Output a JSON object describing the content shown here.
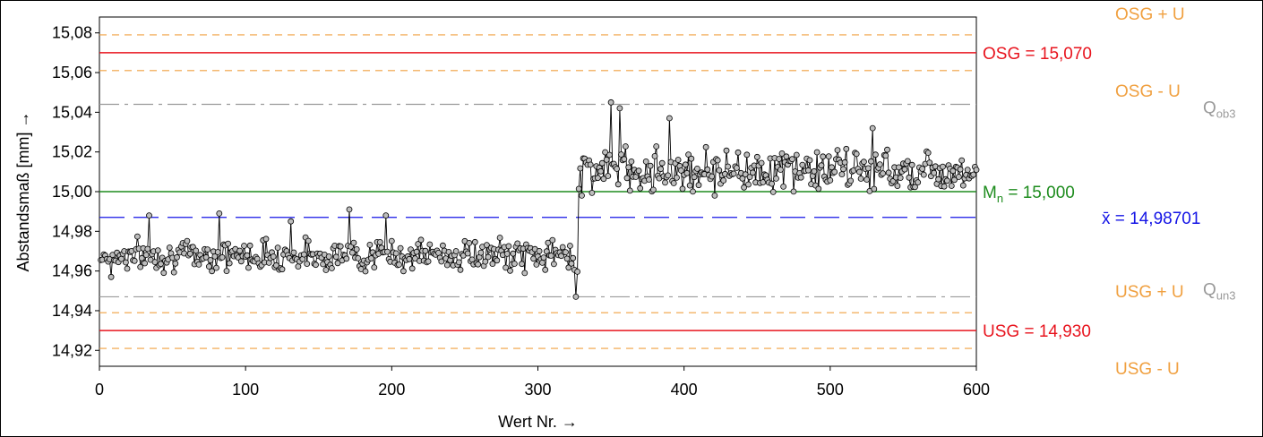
{
  "chart_data": {
    "type": "line",
    "xlabel": "Wert Nr. →",
    "ylabel": "Abstandsmaß [mm] →",
    "xlim": [
      0,
      600
    ],
    "ylim": [
      14.912,
      15.088
    ],
    "x_ticks": [
      0,
      100,
      200,
      300,
      400,
      500,
      600
    ],
    "y_ticks": [
      14.92,
      14.94,
      14.96,
      14.98,
      15.0,
      15.02,
      15.04,
      15.06,
      15.08
    ],
    "y_tick_labels": [
      "14,92",
      "14,94",
      "14,96",
      "14,98",
      "15,00",
      "15,02",
      "15,04",
      "15,06",
      "15,08"
    ],
    "reference_lines": [
      {
        "id": "osg_plus_u",
        "value": 15.079,
        "label": "OSG + U",
        "color": "#f0a040",
        "style": "dashed"
      },
      {
        "id": "osg",
        "value": 15.07,
        "label": "OSG = 15,070",
        "color": "#e8141e",
        "style": "solid"
      },
      {
        "id": "osg_minus_u",
        "value": 15.061,
        "label": "OSG - U",
        "color": "#f0a040",
        "style": "dashed"
      },
      {
        "id": "qob3",
        "value": 15.044,
        "label": "Q",
        "label_sub": "ob3",
        "color": "#9a9a9a",
        "style": "dashdot"
      },
      {
        "id": "mn",
        "value": 15.0,
        "label": "M",
        "label_sub": "n",
        "label_tail": " = 15,000",
        "color": "#1e8c1e",
        "style": "solid"
      },
      {
        "id": "xbar",
        "value": 14.98701,
        "label": "x̄",
        "label_tail": " = 14,98701",
        "color": "#1414e6",
        "style": "longdash"
      },
      {
        "id": "qun3",
        "value": 14.947,
        "label": "Q",
        "label_sub": "un3",
        "color": "#9a9a9a",
        "style": "dashdot"
      },
      {
        "id": "usg_plus_u",
        "value": 14.939,
        "label": "USG + U",
        "color": "#f0a040",
        "style": "dashed"
      },
      {
        "id": "usg",
        "value": 14.93,
        "label": "USG = 14,930",
        "color": "#e8141e",
        "style": "solid"
      },
      {
        "id": "usg_minus_u",
        "value": 14.921,
        "label": "USG - U",
        "color": "#f0a040",
        "style": "dashed"
      }
    ],
    "series": [
      {
        "segments": [
          {
            "x_start": 1,
            "x_end": 327,
            "mean": 14.968,
            "spread": 0.008
          },
          {
            "x_start": 328,
            "x_end": 600,
            "mean": 15.011,
            "spread": 0.011
          }
        ],
        "highlight_points": [
          {
            "x": 8,
            "y": 14.957
          },
          {
            "x": 34,
            "y": 14.988
          },
          {
            "x": 82,
            "y": 14.989
          },
          {
            "x": 131,
            "y": 14.985
          },
          {
            "x": 171,
            "y": 14.991
          },
          {
            "x": 196,
            "y": 14.988
          },
          {
            "x": 326,
            "y": 14.947
          },
          {
            "x": 330,
            "y": 14.998
          },
          {
            "x": 350,
            "y": 15.045
          },
          {
            "x": 356,
            "y": 15.042
          },
          {
            "x": 390,
            "y": 15.037
          },
          {
            "x": 421,
            "y": 14.998
          },
          {
            "x": 529,
            "y": 15.032
          },
          {
            "x": 600,
            "y": 15.011
          }
        ]
      }
    ],
    "grid": false,
    "legend": "none"
  }
}
